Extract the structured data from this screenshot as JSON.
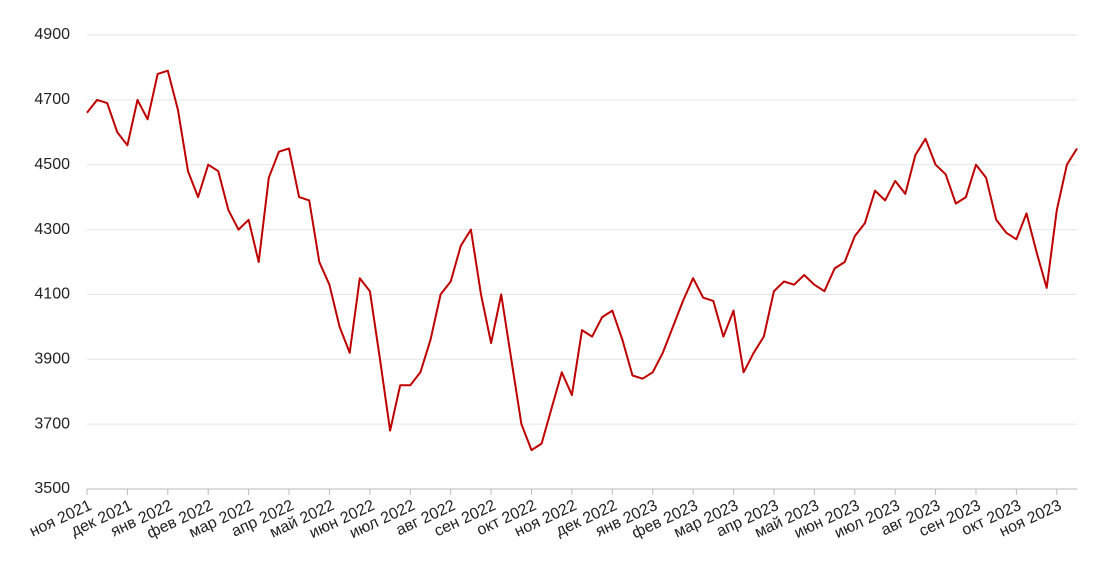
{
  "chart_data": {
    "type": "line",
    "categories": [
      "ноя 2021",
      null,
      null,
      null,
      "дек 2021",
      null,
      null,
      null,
      "янв 2022",
      null,
      null,
      null,
      "фев 2022",
      null,
      null,
      null,
      "мар 2022",
      null,
      null,
      null,
      "апр 2022",
      null,
      null,
      null,
      "май 2022",
      null,
      null,
      null,
      "июн 2022",
      null,
      null,
      null,
      "июл 2022",
      null,
      null,
      null,
      "авг 2022",
      null,
      null,
      null,
      "сен 2022",
      null,
      null,
      null,
      "окт 2022",
      null,
      null,
      null,
      "ноя 2022",
      null,
      null,
      null,
      "дек 2022",
      null,
      null,
      null,
      "янв 2023",
      null,
      null,
      null,
      "фев 2023",
      null,
      null,
      null,
      "мар 2023",
      null,
      null,
      null,
      "апр 2023",
      null,
      null,
      null,
      "май 2023",
      null,
      null,
      null,
      "июн 2023",
      null,
      null,
      null,
      "июл 2023",
      null,
      null,
      null,
      "авг 2023",
      null,
      null,
      null,
      "сен 2023",
      null,
      null,
      null,
      "окт 2023",
      null,
      null,
      null,
      "ноя 2023",
      null,
      null
    ],
    "series": [
      {
        "color": "#bf0000",
        "values": [
          4660,
          4700,
          4690,
          4600,
          4560,
          4700,
          4640,
          4780,
          4790,
          4670,
          4480,
          4400,
          4500,
          4480,
          4360,
          4300,
          4330,
          4200,
          4460,
          4540,
          4550,
          4400,
          4390,
          4200,
          4130,
          4000,
          3920,
          4150,
          4110,
          3900,
          3680,
          3820,
          3820,
          3860,
          3960,
          4100,
          4140,
          4250,
          4300,
          4100,
          3950,
          4100,
          3900,
          3700,
          3620,
          3640,
          3750,
          3860,
          3790,
          3990,
          3970,
          4030,
          4050,
          3960,
          3850,
          3840,
          3860,
          3920,
          4000,
          4080,
          4150,
          4090,
          4080,
          3970,
          4050,
          3860,
          3920,
          3970,
          4110,
          4140,
          4130,
          4160,
          4130,
          4110,
          4180,
          4200,
          4280,
          4320,
          4420,
          4390,
          4450,
          4410,
          4530,
          4580,
          4500,
          4470,
          4380,
          4400,
          4500,
          4460,
          4330,
          4290,
          4270,
          4350,
          4230,
          4120,
          4360,
          4500,
          4550
        ]
      }
    ],
    "ylim": [
      3500,
      4900
    ],
    "yticks": [
      3500,
      3700,
      3900,
      4100,
      4300,
      4500,
      4700,
      4900
    ],
    "grid": true
  }
}
